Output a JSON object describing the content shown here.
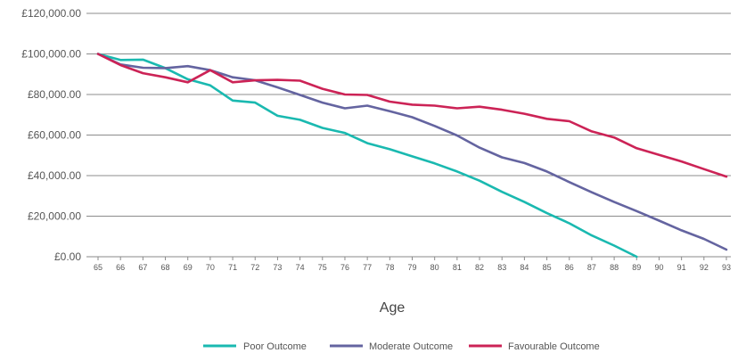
{
  "chart_data": {
    "type": "line",
    "xlabel": "Age",
    "ylabel": "",
    "title": "",
    "ylim": [
      0,
      120000
    ],
    "yticks": [
      0,
      20000,
      40000,
      60000,
      80000,
      100000,
      120000
    ],
    "ytick_labels": [
      "£0.00",
      "£20,000.00",
      "£40,000.00",
      "£60,000.00",
      "£80,000.00",
      "£100,000.00",
      "£120,000.00"
    ],
    "grid": "horizontal",
    "legend_position": "bottom",
    "x": [
      65,
      66,
      67,
      68,
      69,
      70,
      71,
      72,
      73,
      74,
      75,
      76,
      77,
      78,
      79,
      80,
      81,
      82,
      83,
      84,
      85,
      86,
      87,
      88,
      89,
      90,
      91,
      92,
      93
    ],
    "series": [
      {
        "name": "Poor Outcome",
        "color": "#1ab9b0",
        "values": [
          100000,
          97000,
          97200,
          93000,
          87500,
          84500,
          77000,
          76000,
          69500,
          67500,
          63500,
          61000,
          56000,
          53000,
          49500,
          46000,
          42000,
          37500,
          32000,
          27000,
          21500,
          16500,
          10500,
          5500,
          0,
          null,
          null,
          null,
          null
        ]
      },
      {
        "name": "Moderate Outcome",
        "color": "#6464a0",
        "values": [
          100000,
          94800,
          93200,
          93000,
          94000,
          92000,
          88500,
          87000,
          83500,
          79800,
          76000,
          73200,
          74500,
          71800,
          68800,
          64500,
          59800,
          53800,
          49000,
          46200,
          42000,
          36800,
          31800,
          27000,
          22500,
          17800,
          13000,
          8800,
          3500
        ]
      },
      {
        "name": "Favourable Outcome",
        "color": "#cc2356",
        "values": [
          100000,
          94500,
          90500,
          88500,
          86000,
          92000,
          86000,
          87000,
          87200,
          86800,
          82800,
          80000,
          79800,
          76500,
          75000,
          74500,
          73200,
          74000,
          72500,
          70500,
          68000,
          66800,
          61800,
          58800,
          53500,
          50200,
          47000,
          43200,
          39500
        ]
      }
    ]
  }
}
